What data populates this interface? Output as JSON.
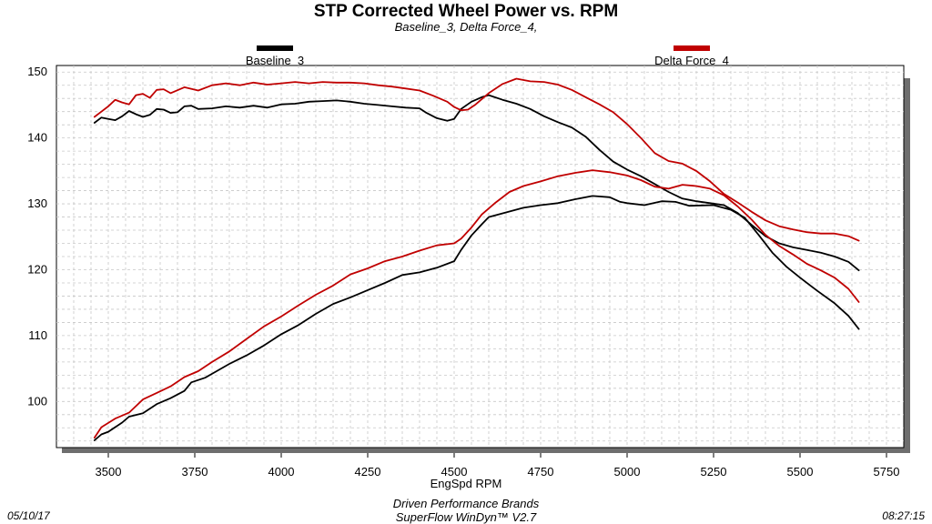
{
  "chart_data": {
    "type": "line",
    "title": "STP Corrected Wheel Power vs. RPM",
    "subtitle": "Baseline_3, Delta Force_4,",
    "xlabel": "EngSpd  RPM",
    "ylabel": "",
    "xlim": [
      3350,
      5800
    ],
    "ylim": [
      93,
      151
    ],
    "xticks": [
      3500,
      3750,
      4000,
      4250,
      4500,
      4750,
      5000,
      5250,
      5500,
      5750
    ],
    "yticks": [
      100,
      110,
      120,
      130,
      140,
      150
    ],
    "grid": true,
    "legend": "top",
    "series": [
      {
        "name": "Baseline_3",
        "color": "#000000",
        "role": "torque",
        "points": [
          [
            3460,
            142.3
          ],
          [
            3480,
            143.1
          ],
          [
            3500,
            142.9
          ],
          [
            3520,
            142.7
          ],
          [
            3540,
            143.3
          ],
          [
            3560,
            144.1
          ],
          [
            3580,
            143.6
          ],
          [
            3600,
            143.2
          ],
          [
            3620,
            143.5
          ],
          [
            3640,
            144.4
          ],
          [
            3660,
            144.3
          ],
          [
            3680,
            143.8
          ],
          [
            3700,
            143.9
          ],
          [
            3720,
            144.8
          ],
          [
            3740,
            144.9
          ],
          [
            3760,
            144.4
          ],
          [
            3800,
            144.5
          ],
          [
            3840,
            144.8
          ],
          [
            3880,
            144.6
          ],
          [
            3920,
            144.9
          ],
          [
            3960,
            144.6
          ],
          [
            4000,
            145.1
          ],
          [
            4040,
            145.2
          ],
          [
            4080,
            145.5
          ],
          [
            4120,
            145.6
          ],
          [
            4160,
            145.7
          ],
          [
            4200,
            145.5
          ],
          [
            4240,
            145.2
          ],
          [
            4280,
            145.0
          ],
          [
            4320,
            144.8
          ],
          [
            4360,
            144.6
          ],
          [
            4400,
            144.5
          ],
          [
            4420,
            143.8
          ],
          [
            4450,
            143.0
          ],
          [
            4480,
            142.6
          ],
          [
            4500,
            142.9
          ],
          [
            4520,
            144.4
          ],
          [
            4550,
            145.5
          ],
          [
            4580,
            146.2
          ],
          [
            4600,
            146.5
          ],
          [
            4640,
            145.8
          ],
          [
            4680,
            145.2
          ],
          [
            4720,
            144.4
          ],
          [
            4760,
            143.3
          ],
          [
            4800,
            142.4
          ],
          [
            4840,
            141.6
          ],
          [
            4880,
            140.2
          ],
          [
            4920,
            138.2
          ],
          [
            4960,
            136.4
          ],
          [
            5000,
            135.2
          ],
          [
            5040,
            134.2
          ],
          [
            5080,
            133.0
          ],
          [
            5120,
            131.8
          ],
          [
            5160,
            130.8
          ],
          [
            5200,
            130.4
          ],
          [
            5240,
            130.1
          ],
          [
            5280,
            129.8
          ],
          [
            5320,
            128.6
          ],
          [
            5360,
            126.8
          ],
          [
            5400,
            125.1
          ],
          [
            5440,
            124.0
          ],
          [
            5480,
            123.4
          ],
          [
            5520,
            123.0
          ],
          [
            5560,
            122.6
          ],
          [
            5600,
            122.0
          ],
          [
            5640,
            121.2
          ],
          [
            5670,
            119.9
          ]
        ]
      },
      {
        "name": "Baseline_3",
        "color": "#000000",
        "role": "power",
        "points": [
          [
            3460,
            94.1
          ],
          [
            3480,
            95.0
          ],
          [
            3500,
            95.4
          ],
          [
            3540,
            96.8
          ],
          [
            3560,
            97.7
          ],
          [
            3600,
            98.2
          ],
          [
            3640,
            99.6
          ],
          [
            3680,
            100.5
          ],
          [
            3720,
            101.6
          ],
          [
            3740,
            102.9
          ],
          [
            3780,
            103.6
          ],
          [
            3800,
            104.2
          ],
          [
            3850,
            105.7
          ],
          [
            3900,
            107.0
          ],
          [
            3950,
            108.5
          ],
          [
            4000,
            110.2
          ],
          [
            4050,
            111.6
          ],
          [
            4100,
            113.3
          ],
          [
            4150,
            114.8
          ],
          [
            4200,
            115.8
          ],
          [
            4250,
            116.9
          ],
          [
            4300,
            118.0
          ],
          [
            4350,
            119.2
          ],
          [
            4400,
            119.6
          ],
          [
            4450,
            120.3
          ],
          [
            4500,
            121.3
          ],
          [
            4520,
            123.0
          ],
          [
            4550,
            125.2
          ],
          [
            4580,
            126.9
          ],
          [
            4600,
            128.0
          ],
          [
            4650,
            128.7
          ],
          [
            4700,
            129.4
          ],
          [
            4750,
            129.8
          ],
          [
            4800,
            130.1
          ],
          [
            4850,
            130.7
          ],
          [
            4900,
            131.2
          ],
          [
            4950,
            131.0
          ],
          [
            4980,
            130.3
          ],
          [
            5000,
            130.1
          ],
          [
            5050,
            129.8
          ],
          [
            5100,
            130.4
          ],
          [
            5140,
            130.3
          ],
          [
            5180,
            129.7
          ],
          [
            5250,
            129.8
          ],
          [
            5300,
            129.1
          ],
          [
            5340,
            127.9
          ],
          [
            5380,
            125.3
          ],
          [
            5420,
            122.6
          ],
          [
            5460,
            120.5
          ],
          [
            5500,
            118.8
          ],
          [
            5550,
            116.8
          ],
          [
            5600,
            114.9
          ],
          [
            5640,
            113.0
          ],
          [
            5670,
            111.0
          ]
        ]
      },
      {
        "name": "Delta Force_4",
        "color": "#c00000",
        "role": "torque",
        "points": [
          [
            3460,
            143.2
          ],
          [
            3480,
            144.0
          ],
          [
            3500,
            144.8
          ],
          [
            3520,
            145.8
          ],
          [
            3540,
            145.4
          ],
          [
            3560,
            145.1
          ],
          [
            3580,
            146.5
          ],
          [
            3600,
            146.7
          ],
          [
            3620,
            146.1
          ],
          [
            3640,
            147.3
          ],
          [
            3660,
            147.4
          ],
          [
            3680,
            146.8
          ],
          [
            3720,
            147.7
          ],
          [
            3760,
            147.2
          ],
          [
            3800,
            148.0
          ],
          [
            3840,
            148.3
          ],
          [
            3880,
            148.0
          ],
          [
            3920,
            148.4
          ],
          [
            3960,
            148.1
          ],
          [
            4000,
            148.3
          ],
          [
            4040,
            148.5
          ],
          [
            4080,
            148.3
          ],
          [
            4120,
            148.5
          ],
          [
            4160,
            148.4
          ],
          [
            4200,
            148.4
          ],
          [
            4240,
            148.3
          ],
          [
            4280,
            148.0
          ],
          [
            4320,
            147.8
          ],
          [
            4360,
            147.5
          ],
          [
            4400,
            147.2
          ],
          [
            4440,
            146.4
          ],
          [
            4480,
            145.5
          ],
          [
            4500,
            144.7
          ],
          [
            4520,
            144.2
          ],
          [
            4540,
            144.3
          ],
          [
            4560,
            145.0
          ],
          [
            4600,
            146.8
          ],
          [
            4640,
            148.2
          ],
          [
            4680,
            149.0
          ],
          [
            4720,
            148.6
          ],
          [
            4760,
            148.5
          ],
          [
            4800,
            148.1
          ],
          [
            4840,
            147.3
          ],
          [
            4880,
            146.2
          ],
          [
            4920,
            145.1
          ],
          [
            4960,
            143.9
          ],
          [
            5000,
            142.1
          ],
          [
            5040,
            140.0
          ],
          [
            5080,
            137.7
          ],
          [
            5120,
            136.5
          ],
          [
            5160,
            136.1
          ],
          [
            5200,
            135.0
          ],
          [
            5240,
            133.4
          ],
          [
            5280,
            131.5
          ],
          [
            5320,
            130.2
          ],
          [
            5360,
            128.8
          ],
          [
            5400,
            127.5
          ],
          [
            5440,
            126.6
          ],
          [
            5480,
            126.1
          ],
          [
            5520,
            125.7
          ],
          [
            5560,
            125.5
          ],
          [
            5600,
            125.5
          ],
          [
            5640,
            125.1
          ],
          [
            5670,
            124.4
          ]
        ]
      },
      {
        "name": "Delta Force_4",
        "color": "#c00000",
        "role": "power",
        "points": [
          [
            3460,
            94.5
          ],
          [
            3480,
            96.1
          ],
          [
            3520,
            97.4
          ],
          [
            3560,
            98.3
          ],
          [
            3600,
            100.3
          ],
          [
            3640,
            101.3
          ],
          [
            3680,
            102.3
          ],
          [
            3720,
            103.7
          ],
          [
            3760,
            104.6
          ],
          [
            3800,
            106.0
          ],
          [
            3850,
            107.6
          ],
          [
            3900,
            109.5
          ],
          [
            3950,
            111.4
          ],
          [
            4000,
            112.9
          ],
          [
            4050,
            114.6
          ],
          [
            4100,
            116.2
          ],
          [
            4150,
            117.6
          ],
          [
            4200,
            119.3
          ],
          [
            4250,
            120.2
          ],
          [
            4300,
            121.3
          ],
          [
            4350,
            122.0
          ],
          [
            4400,
            122.9
          ],
          [
            4450,
            123.7
          ],
          [
            4500,
            124.0
          ],
          [
            4520,
            124.7
          ],
          [
            4550,
            126.4
          ],
          [
            4580,
            128.4
          ],
          [
            4620,
            130.2
          ],
          [
            4660,
            131.8
          ],
          [
            4700,
            132.7
          ],
          [
            4750,
            133.4
          ],
          [
            4800,
            134.2
          ],
          [
            4850,
            134.7
          ],
          [
            4900,
            135.1
          ],
          [
            4950,
            134.8
          ],
          [
            5000,
            134.3
          ],
          [
            5040,
            133.6
          ],
          [
            5080,
            132.6
          ],
          [
            5120,
            132.3
          ],
          [
            5160,
            132.9
          ],
          [
            5200,
            132.7
          ],
          [
            5240,
            132.3
          ],
          [
            5280,
            131.3
          ],
          [
            5320,
            129.6
          ],
          [
            5360,
            127.6
          ],
          [
            5400,
            125.3
          ],
          [
            5440,
            123.6
          ],
          [
            5480,
            122.3
          ],
          [
            5520,
            120.9
          ],
          [
            5560,
            119.9
          ],
          [
            5600,
            118.8
          ],
          [
            5640,
            117.1
          ],
          [
            5670,
            115.1
          ]
        ]
      }
    ]
  },
  "legend": {
    "items": [
      {
        "label": "Baseline_3",
        "color": "#000000"
      },
      {
        "label": "Delta Force_4",
        "color": "#c00000"
      }
    ]
  },
  "footer": {
    "date": "05/10/17",
    "time": "08:27:15",
    "company": "Driven Performance Brands",
    "software": "SuperFlow WinDyn™  V2.7"
  }
}
